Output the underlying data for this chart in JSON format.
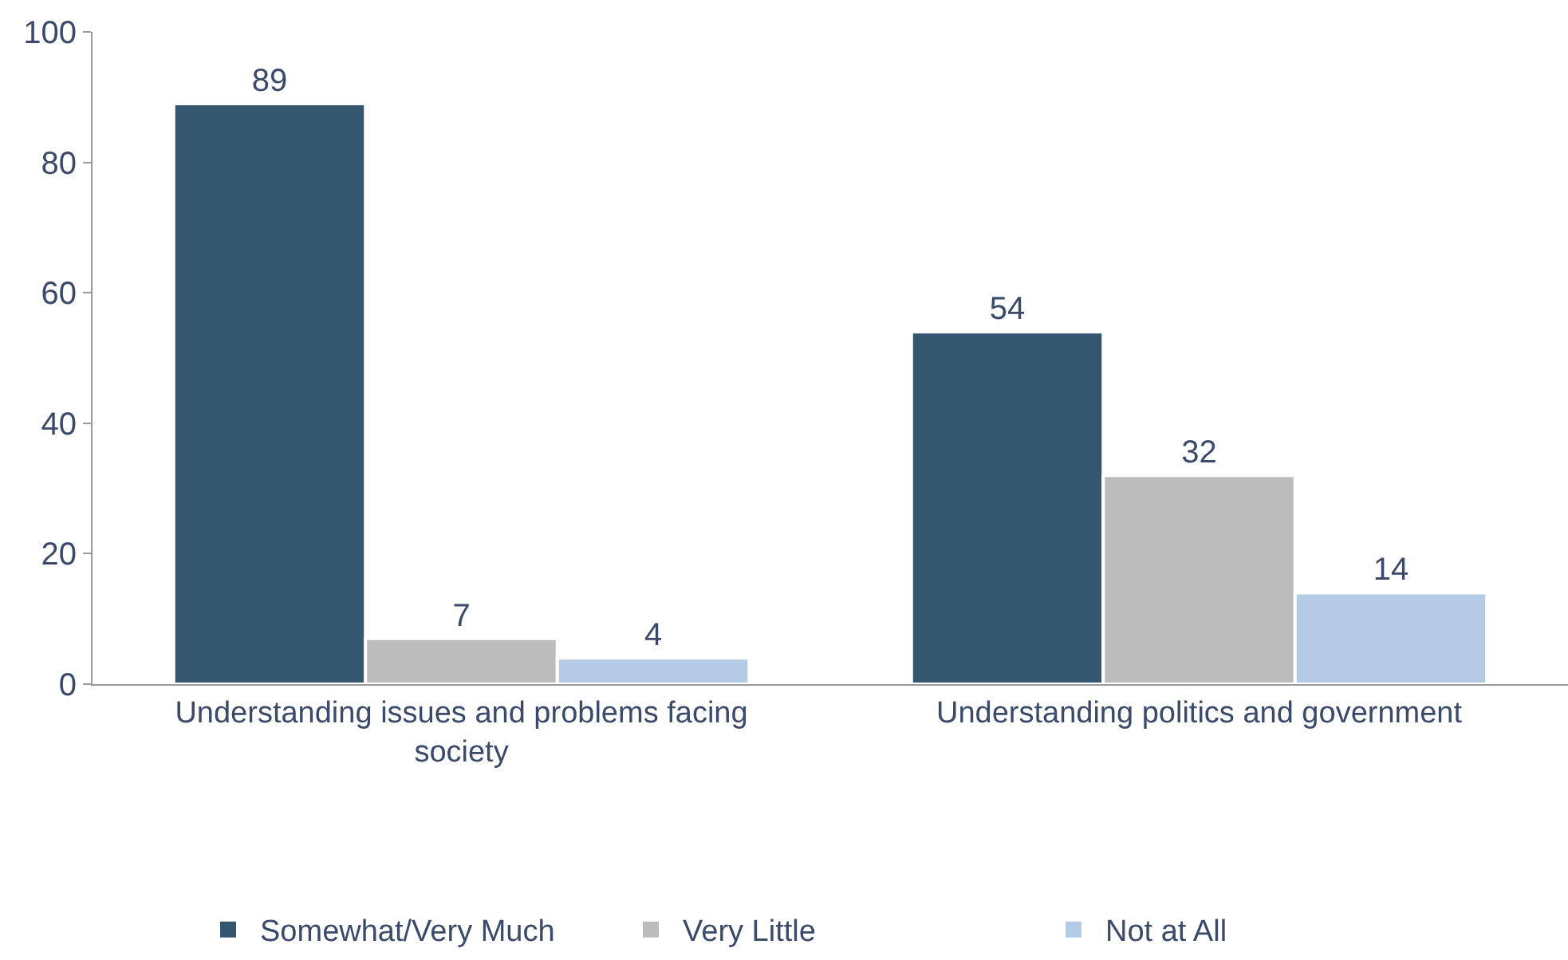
{
  "chart_data": {
    "type": "bar",
    "categories": [
      "Understanding issues and problems facing society",
      "Understanding politics and government"
    ],
    "series": [
      {
        "name": "Somewhat/Very Much",
        "color": "#34566f",
        "values": [
          89,
          54
        ]
      },
      {
        "name": "Very Little",
        "color": "#bdbcbd",
        "values": [
          7,
          32
        ]
      },
      {
        "name": "Not at All",
        "color": "#b4cbe6",
        "values": [
          4,
          14
        ]
      }
    ],
    "ylim": [
      0,
      100
    ],
    "yticks": [
      0,
      20,
      40,
      60,
      80,
      100
    ],
    "data_labels": true,
    "legend": "bottom"
  }
}
